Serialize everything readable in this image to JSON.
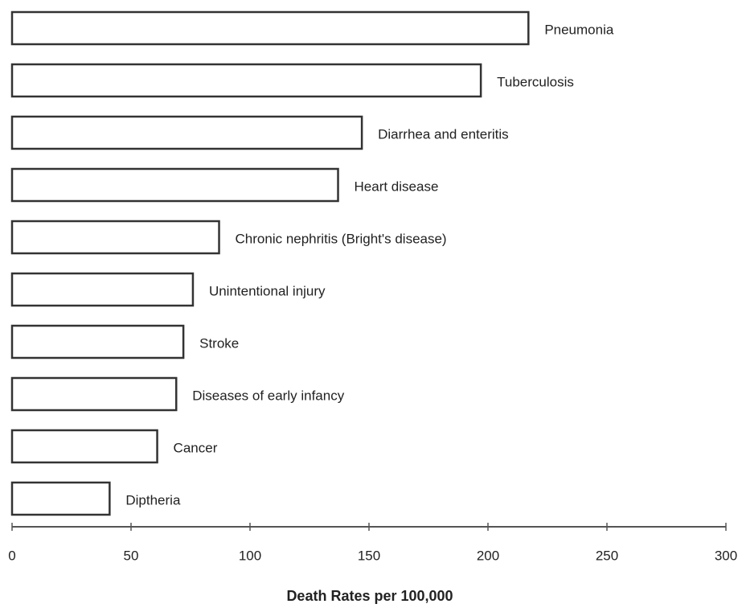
{
  "chart_data": {
    "type": "bar",
    "orientation": "horizontal",
    "categories": [
      "Pneumonia",
      "Tuberculosis",
      "Diarrhea and enteritis",
      "Heart disease",
      "Chronic nephritis (Bright's disease)",
      "Unintentional injury",
      "Stroke",
      "Diseases of early infancy",
      "Cancer",
      "Diptheria"
    ],
    "values": [
      217,
      197,
      147,
      137,
      87,
      76,
      72,
      69,
      61,
      41
    ],
    "color": "#ffffff",
    "xlim": [
      0,
      300
    ],
    "xticks": [
      0,
      50,
      100,
      150,
      200,
      250,
      300
    ],
    "xlabel": "Death Rates per 100,000"
  }
}
